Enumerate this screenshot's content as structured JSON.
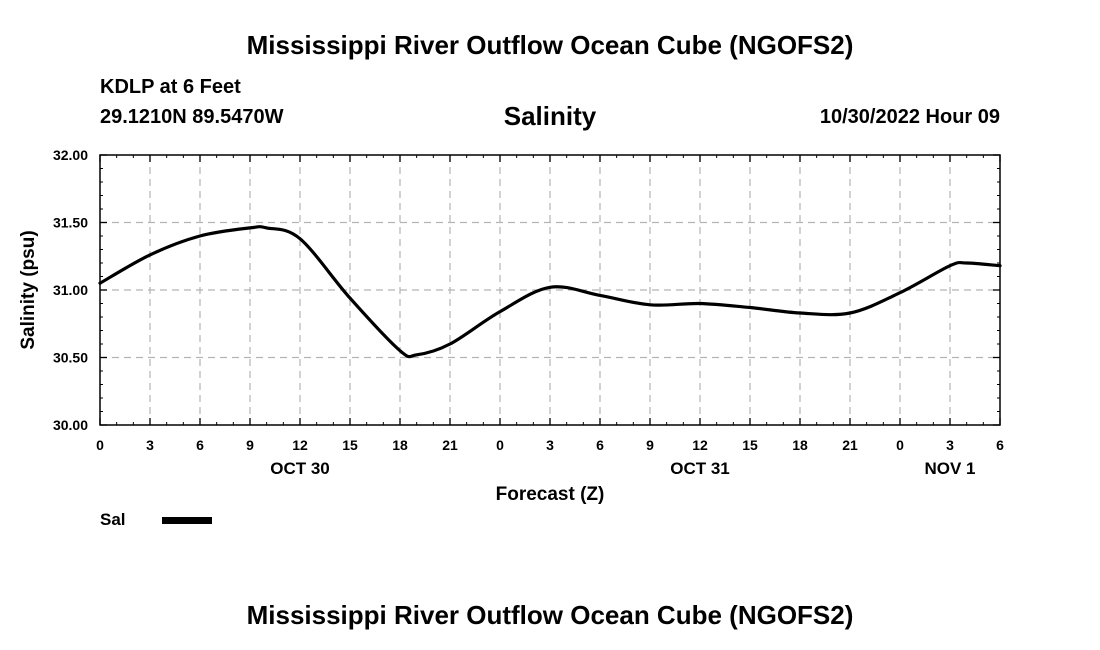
{
  "page": {
    "title_top": "Mississippi River Outflow Ocean Cube (NGOFS2)",
    "title_bottom": "Mississippi River Outflow Ocean Cube (NGOFS2)"
  },
  "header": {
    "station": "KDLP at 6 Feet",
    "coords": "29.1210N  89.5470W",
    "variable": "Salinity",
    "datetime": "10/30/2022 Hour 09"
  },
  "legend": {
    "label": "Sal",
    "color": "#000000"
  },
  "chart_data": {
    "type": "line",
    "title": "Salinity",
    "xlabel": "Forecast (Z)",
    "ylabel": "Salinity (psu)",
    "xlim": [
      0,
      54
    ],
    "ylim": [
      30.0,
      32.0
    ],
    "grid": true,
    "legend_position": "bottom-left",
    "x_tick_labels": [
      "0",
      "3",
      "6",
      "9",
      "12",
      "15",
      "18",
      "21",
      "0",
      "3",
      "6",
      "9",
      "12",
      "15",
      "18",
      "21",
      "0",
      "3",
      "6"
    ],
    "y_tick_labels": [
      "32.00",
      "31.50",
      "31.00",
      "30.50",
      "30.00"
    ],
    "date_labels": [
      {
        "label": "OCT 30",
        "x": 12
      },
      {
        "label": "OCT 31",
        "x": 36
      },
      {
        "label": "NOV 1",
        "x": 51
      }
    ],
    "series": [
      {
        "name": "Sal",
        "color": "#000000",
        "x": [
          0,
          3,
          6,
          9,
          10,
          12,
          15,
          18,
          19,
          21,
          24,
          27,
          30,
          33,
          36,
          39,
          42,
          45,
          48,
          51,
          52,
          54
        ],
        "y": [
          31.05,
          31.26,
          31.4,
          31.46,
          31.46,
          31.38,
          30.94,
          30.55,
          30.52,
          30.6,
          30.84,
          31.02,
          30.96,
          30.89,
          30.9,
          30.87,
          30.83,
          30.83,
          30.98,
          31.18,
          31.2,
          31.18
        ]
      }
    ]
  }
}
